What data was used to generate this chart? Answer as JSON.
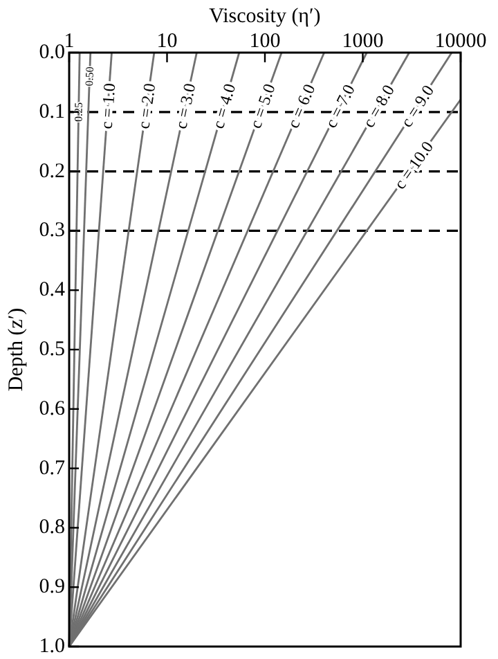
{
  "chart_data": {
    "type": "line",
    "xlabel": "Viscosity (η′)",
    "ylabel": "Depth (z′)",
    "log": "x",
    "xlim": [
      1,
      10000
    ],
    "xticks": [
      1,
      10,
      100,
      1000,
      10000
    ],
    "ylim": [
      1.0,
      0.0
    ],
    "yticks": [
      {
        "value": 0,
        "label": "0.0"
      },
      0.1,
      0.2,
      0.3,
      0.4,
      0.5,
      0.6,
      0.7,
      0.8,
      0.9,
      {
        "value": 1,
        "label": "1.0"
      }
    ],
    "grid": false,
    "line_style": "solid",
    "marker": "none",
    "series": [
      {
        "name": "0.25",
        "color": "#707070",
        "x": [
          1,
          1.28
        ],
        "values": [
          1,
          0
        ]
      },
      {
        "name": "0.50",
        "color": "#707070",
        "x": [
          1,
          1.65
        ],
        "values": [
          1,
          0
        ]
      },
      {
        "name": "c = 1.0",
        "color": "#707070",
        "x": [
          1,
          2.72
        ],
        "values": [
          1,
          0
        ]
      },
      {
        "name": "c = 2.0",
        "color": "#707070",
        "x": [
          1,
          7.39
        ],
        "values": [
          1,
          0
        ]
      },
      {
        "name": "c = 3.0",
        "color": "#707070",
        "x": [
          1,
          20.1
        ],
        "values": [
          1,
          0
        ]
      },
      {
        "name": "c = 4.0",
        "color": "#707070",
        "x": [
          1,
          54.6
        ],
        "values": [
          1,
          0
        ]
      },
      {
        "name": "c = 5.0",
        "color": "#707070",
        "x": [
          1,
          148
        ],
        "values": [
          1,
          0
        ]
      },
      {
        "name": "c = 6.0",
        "color": "#707070",
        "x": [
          1,
          403
        ],
        "values": [
          1,
          0
        ]
      },
      {
        "name": "c = 7.0",
        "color": "#707070",
        "x": [
          1,
          1097
        ],
        "values": [
          1,
          0
        ]
      },
      {
        "name": "c = 8.0",
        "color": "#707070",
        "x": [
          1,
          2981
        ],
        "values": [
          1,
          0
        ]
      },
      {
        "name": "c = 9.0",
        "color": "#707070",
        "x": [
          1,
          8103
        ],
        "values": [
          1,
          0
        ]
      },
      {
        "name": "c = 10.0",
        "color": "#707070",
        "x": [
          1,
          10000
        ],
        "values": [
          1,
          0.079
        ]
      }
    ],
    "ref_lines": [
      {
        "axis": "y",
        "value": 0.1,
        "color": "#000000",
        "line_style": "dashed"
      },
      {
        "axis": "y",
        "value": 0.2,
        "color": "#000000",
        "line_style": "dashed"
      },
      {
        "axis": "y",
        "value": 0.3,
        "color": "#000000",
        "line_style": "dashed"
      }
    ]
  }
}
